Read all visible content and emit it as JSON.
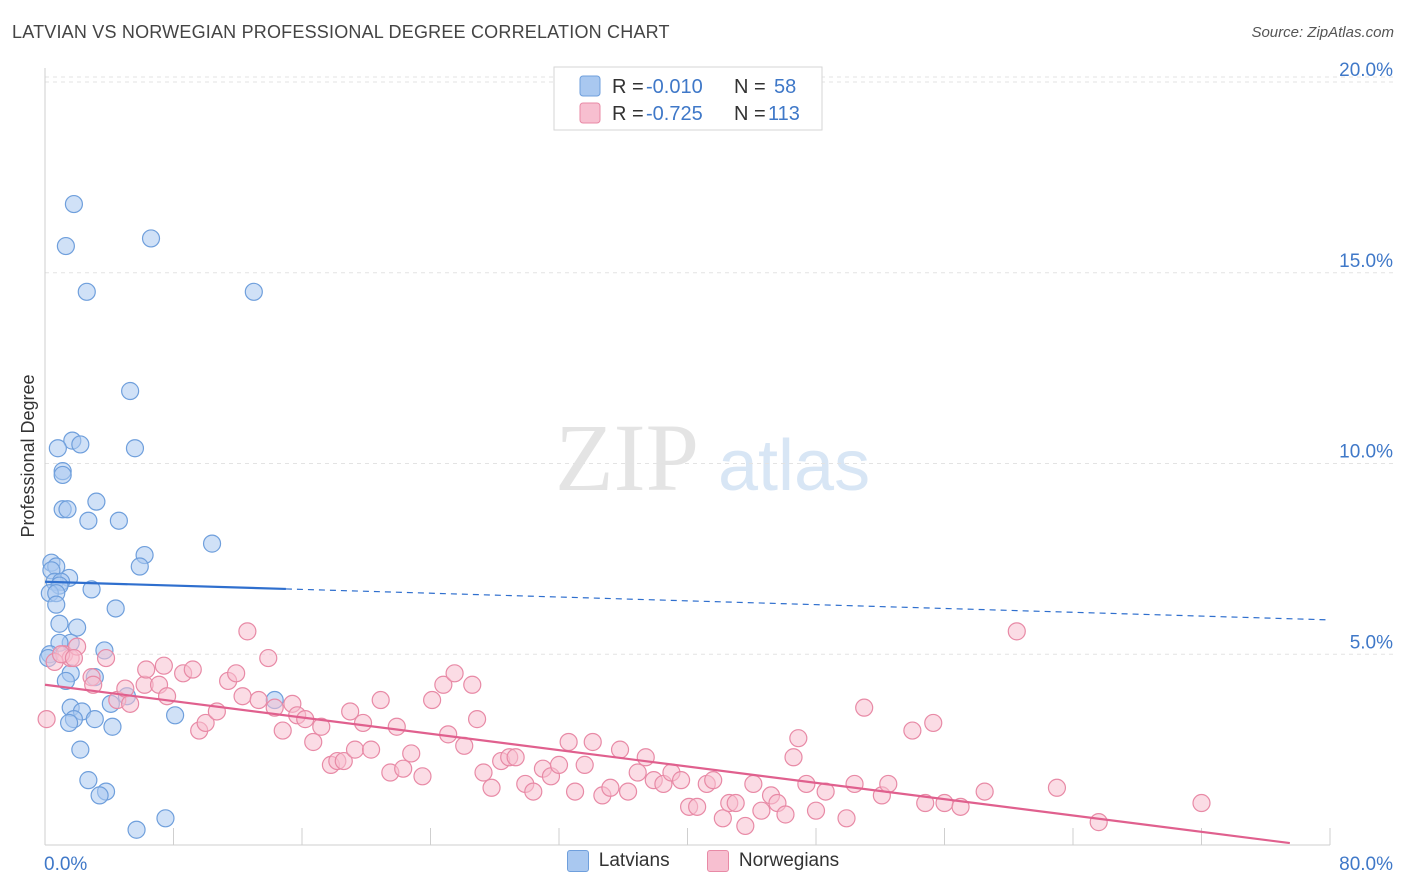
{
  "header": {
    "title": "LATVIAN VS NORWEGIAN PROFESSIONAL DEGREE CORRELATION CHART",
    "source": "Source: ZipAtlas.com"
  },
  "watermark": {
    "zip": "ZIP",
    "atlas": "atlas"
  },
  "legend": {
    "rows": [
      {
        "r_label": "R = ",
        "r_value": "-0.010",
        "n_label": "N = ",
        "n_value": "58",
        "color": "#a9c8f0",
        "stroke": "#6f9fdc"
      },
      {
        "r_label": "R = ",
        "r_value": "-0.725",
        "n_label": "N = ",
        "n_value": "113",
        "color": "#f7bfd0",
        "stroke": "#e88aa6"
      }
    ]
  },
  "bottom_legend": {
    "latvians": "Latvians",
    "norwegians": "Norwegians"
  },
  "chart_data": {
    "type": "scatter",
    "title": "LATVIAN VS NORWEGIAN PROFESSIONAL DEGREE CORRELATION CHART",
    "xlabel": "",
    "ylabel": "Professional Degree",
    "xlim": [
      0,
      80
    ],
    "ylim": [
      0,
      20
    ],
    "x_tick_labels": [
      "0.0%",
      "80.0%"
    ],
    "y_ticks": [
      5,
      10,
      15,
      20
    ],
    "y_tick_labels": [
      "5.0%",
      "10.0%",
      "15.0%",
      "20.0%"
    ],
    "grid": true,
    "legend_position": "top-center",
    "series": [
      {
        "name": "Latvians",
        "color": "#a9c8f0",
        "stroke": "#6f9fdc",
        "line_color": "#2f6fce",
        "trend": {
          "x0": 0,
          "y0": 6.9,
          "x1": 80,
          "y1": 5.9,
          "solid_until": 15
        },
        "points": [
          [
            1.8,
            16.8
          ],
          [
            1.3,
            15.7
          ],
          [
            6.6,
            15.9
          ],
          [
            2.6,
            14.5
          ],
          [
            13.0,
            14.5
          ],
          [
            5.3,
            11.9
          ],
          [
            1.7,
            10.6
          ],
          [
            0.8,
            10.4
          ],
          [
            2.2,
            10.5
          ],
          [
            5.6,
            10.4
          ],
          [
            1.1,
            9.8
          ],
          [
            1.1,
            9.7
          ],
          [
            3.2,
            9.0
          ],
          [
            1.1,
            8.8
          ],
          [
            1.4,
            8.8
          ],
          [
            2.7,
            8.5
          ],
          [
            4.6,
            8.5
          ],
          [
            10.4,
            7.9
          ],
          [
            6.2,
            7.6
          ],
          [
            0.4,
            7.4
          ],
          [
            5.9,
            7.3
          ],
          [
            0.7,
            7.3
          ],
          [
            0.4,
            7.2
          ],
          [
            1.5,
            7.0
          ],
          [
            0.6,
            6.9
          ],
          [
            1.0,
            6.9
          ],
          [
            0.9,
            6.8
          ],
          [
            2.9,
            6.7
          ],
          [
            0.3,
            6.6
          ],
          [
            0.7,
            6.6
          ],
          [
            0.7,
            6.3
          ],
          [
            4.4,
            6.2
          ],
          [
            0.9,
            5.8
          ],
          [
            2.0,
            5.7
          ],
          [
            1.6,
            5.3
          ],
          [
            0.9,
            5.3
          ],
          [
            3.7,
            5.1
          ],
          [
            0.3,
            5.0
          ],
          [
            1.6,
            4.5
          ],
          [
            3.1,
            4.4
          ],
          [
            1.3,
            4.3
          ],
          [
            5.1,
            3.9
          ],
          [
            4.1,
            3.7
          ],
          [
            14.3,
            3.8
          ],
          [
            1.6,
            3.6
          ],
          [
            2.3,
            3.5
          ],
          [
            8.1,
            3.4
          ],
          [
            3.1,
            3.3
          ],
          [
            1.8,
            3.3
          ],
          [
            1.5,
            3.2
          ],
          [
            4.2,
            3.1
          ],
          [
            2.2,
            2.5
          ],
          [
            2.7,
            1.7
          ],
          [
            3.8,
            1.4
          ],
          [
            3.4,
            1.3
          ],
          [
            7.5,
            0.7
          ],
          [
            5.7,
            0.4
          ],
          [
            0.2,
            4.9
          ]
        ]
      },
      {
        "name": "Norwegians",
        "color": "#f7bfd0",
        "stroke": "#e88aa6",
        "line_color": "#e0608e",
        "trend": {
          "x0": 0,
          "y0": 4.2,
          "x1": 77.5,
          "y1": 0.05,
          "solid_until": 77.5
        },
        "points": [
          [
            0.1,
            3.3
          ],
          [
            1.2,
            5.0
          ],
          [
            1.6,
            4.9
          ],
          [
            2.0,
            5.2
          ],
          [
            3.8,
            4.9
          ],
          [
            2.9,
            4.4
          ],
          [
            3.0,
            4.2
          ],
          [
            4.5,
            3.8
          ],
          [
            5.0,
            4.1
          ],
          [
            5.3,
            3.7
          ],
          [
            6.2,
            4.2
          ],
          [
            6.3,
            4.6
          ],
          [
            7.1,
            4.2
          ],
          [
            7.6,
            3.9
          ],
          [
            7.4,
            4.7
          ],
          [
            8.6,
            4.5
          ],
          [
            9.2,
            4.6
          ],
          [
            9.6,
            3.0
          ],
          [
            10.0,
            3.2
          ],
          [
            10.7,
            3.5
          ],
          [
            11.4,
            4.3
          ],
          [
            11.9,
            4.5
          ],
          [
            12.3,
            3.9
          ],
          [
            12.6,
            5.6
          ],
          [
            13.3,
            3.8
          ],
          [
            13.9,
            4.9
          ],
          [
            14.3,
            3.6
          ],
          [
            14.8,
            3.0
          ],
          [
            15.4,
            3.7
          ],
          [
            15.7,
            3.4
          ],
          [
            16.2,
            3.3
          ],
          [
            16.7,
            2.7
          ],
          [
            17.2,
            3.1
          ],
          [
            17.8,
            2.1
          ],
          [
            18.2,
            2.2
          ],
          [
            18.6,
            2.2
          ],
          [
            19.0,
            3.5
          ],
          [
            19.3,
            2.5
          ],
          [
            19.8,
            3.2
          ],
          [
            20.3,
            2.5
          ],
          [
            20.9,
            3.8
          ],
          [
            21.5,
            1.9
          ],
          [
            21.9,
            3.1
          ],
          [
            22.3,
            2.0
          ],
          [
            22.8,
            2.4
          ],
          [
            23.5,
            1.8
          ],
          [
            24.1,
            3.8
          ],
          [
            24.8,
            4.2
          ],
          [
            25.1,
            2.9
          ],
          [
            25.5,
            4.5
          ],
          [
            26.1,
            2.6
          ],
          [
            26.6,
            4.2
          ],
          [
            26.9,
            3.3
          ],
          [
            27.3,
            1.9
          ],
          [
            27.8,
            1.5
          ],
          [
            28.4,
            2.2
          ],
          [
            28.9,
            2.3
          ],
          [
            29.3,
            2.3
          ],
          [
            29.9,
            1.6
          ],
          [
            30.4,
            1.4
          ],
          [
            31.0,
            2.0
          ],
          [
            31.5,
            1.8
          ],
          [
            32.0,
            2.1
          ],
          [
            32.6,
            2.7
          ],
          [
            33.0,
            1.4
          ],
          [
            33.6,
            2.1
          ],
          [
            34.1,
            2.7
          ],
          [
            34.7,
            1.3
          ],
          [
            35.2,
            1.5
          ],
          [
            35.8,
            2.5
          ],
          [
            36.3,
            1.4
          ],
          [
            36.9,
            1.9
          ],
          [
            37.4,
            2.3
          ],
          [
            37.9,
            1.7
          ],
          [
            38.5,
            1.6
          ],
          [
            39.0,
            1.9
          ],
          [
            39.6,
            1.7
          ],
          [
            40.1,
            1.0
          ],
          [
            40.6,
            1.0
          ],
          [
            41.2,
            1.6
          ],
          [
            41.6,
            1.7
          ],
          [
            42.2,
            0.7
          ],
          [
            42.6,
            1.1
          ],
          [
            43.0,
            1.1
          ],
          [
            43.6,
            0.5
          ],
          [
            44.1,
            1.6
          ],
          [
            44.6,
            0.9
          ],
          [
            45.2,
            1.3
          ],
          [
            45.6,
            1.1
          ],
          [
            46.1,
            0.8
          ],
          [
            46.6,
            2.3
          ],
          [
            46.9,
            2.8
          ],
          [
            47.4,
            1.6
          ],
          [
            48.0,
            0.9
          ],
          [
            48.6,
            1.4
          ],
          [
            49.9,
            0.7
          ],
          [
            50.4,
            1.6
          ],
          [
            51.0,
            3.6
          ],
          [
            52.1,
            1.3
          ],
          [
            52.5,
            1.6
          ],
          [
            54.0,
            3.0
          ],
          [
            54.8,
            1.1
          ],
          [
            55.3,
            3.2
          ],
          [
            56.0,
            1.1
          ],
          [
            57.0,
            1.0
          ],
          [
            58.5,
            1.4
          ],
          [
            60.5,
            5.6
          ],
          [
            63.0,
            1.5
          ],
          [
            65.6,
            0.6
          ],
          [
            72.0,
            1.1
          ],
          [
            0.6,
            4.8
          ],
          [
            1.0,
            5.0
          ],
          [
            1.8,
            4.9
          ]
        ]
      }
    ]
  }
}
